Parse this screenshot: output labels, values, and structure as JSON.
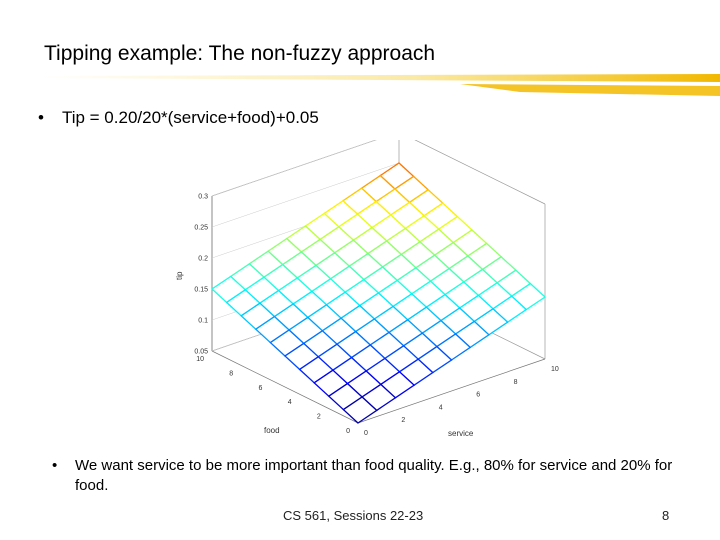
{
  "slide": {
    "title": "Tipping example:  The non-fuzzy approach",
    "bullet1_marker": "•",
    "bullet1_text": "Tip = 0.20/20*(service+food)+0.05",
    "bullet2_marker": "•",
    "bullet2_text": "We want service to be more important than food quality.  E.g., 80% for service and 20% for food.",
    "footer": "CS 561,  Sessions 22-23",
    "page_number": "8"
  },
  "plot": {
    "zlabel": "tip",
    "xlabel": "service",
    "ylabel": "food",
    "z_ticks": [
      "0.05",
      "0.1",
      "0.15",
      "0.2",
      "0.25",
      "0.3"
    ],
    "food_ticks": [
      "0",
      "2",
      "4",
      "6",
      "8",
      "10"
    ],
    "service_ticks": [
      "0",
      "2",
      "4",
      "6",
      "8",
      "10"
    ],
    "z_range": [
      0.05,
      0.3
    ],
    "grid_n": 10
  }
}
